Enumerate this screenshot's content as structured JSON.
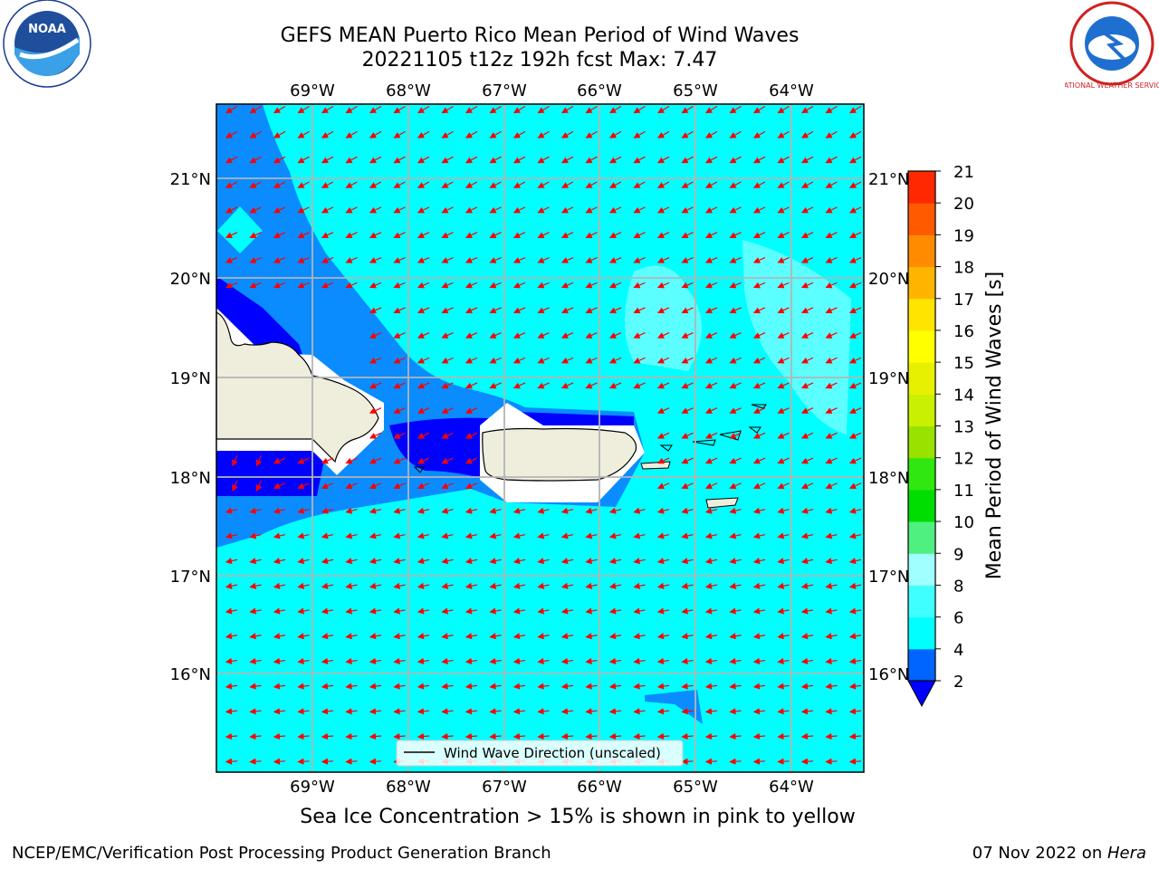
{
  "header": {
    "title_line1": "GEFS MEAN Puerto Rico Mean Period of Wind Waves",
    "title_line2": "20221105 t12z 192h fcst   Max: 7.47"
  },
  "logos": {
    "left": "NOAA",
    "right": "NATIONAL WEATHER SERVICE",
    "left_icon": "noaa-logo",
    "right_icon": "nws-logo"
  },
  "map": {
    "lon_labels": [
      "69°W",
      "68°W",
      "67°W",
      "66°W",
      "65°W",
      "64°W"
    ],
    "lat_labels": [
      "21°N",
      "20°N",
      "19°N",
      "18°N",
      "17°N",
      "16°N"
    ],
    "legend_label": "Wind Wave Direction (unscaled)",
    "arrow_color": "#ff0000",
    "ocean_color": "#00ffff",
    "land_color": "#efeedd"
  },
  "colorbar": {
    "title": "Mean Period of Wind Waves [s]",
    "ticks": [
      "2",
      "4",
      "6",
      "8",
      "9",
      "10",
      "11",
      "12",
      "13",
      "14",
      "15",
      "16",
      "17",
      "18",
      "19",
      "20",
      "21"
    ],
    "colors": [
      "#0064ff",
      "#00ffff",
      "#40ffff",
      "#a0ffff",
      "#50f080",
      "#00dd00",
      "#30e810",
      "#99e200",
      "#c8f000",
      "#e6f000",
      "#ffff00",
      "#ffe400",
      "#ffb400",
      "#ff8c00",
      "#ff5a00",
      "#ff2800"
    ],
    "under_color": "#0000ff",
    "over_color": "#ff0000"
  },
  "caption": "Sea Ice Concentration > 15% is shown in pink to yellow",
  "footer": {
    "left": "NCEP/EMC/Verification Post Processing Product Generation Branch",
    "right_date": "07 Nov 2022 on ",
    "right_host": "Hera"
  }
}
